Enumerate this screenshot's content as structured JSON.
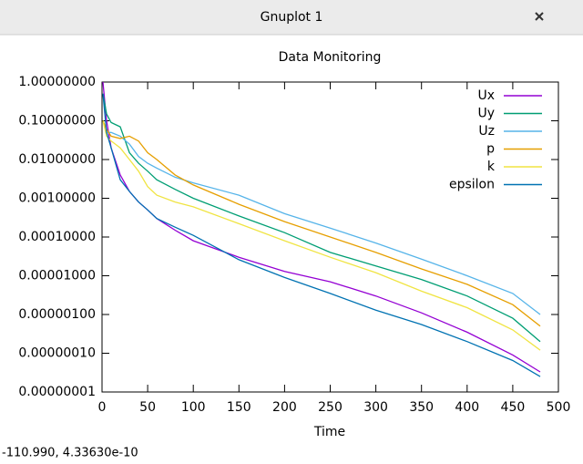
{
  "window": {
    "title": "Gnuplot 1",
    "status": "-110.990, 4.33630e-10"
  },
  "chart_data": {
    "type": "line",
    "title": "Data Monitoring",
    "x_label": "Time",
    "log_scale_y": true,
    "legend": "top-right",
    "x": [
      1,
      5,
      10,
      20,
      30,
      40,
      50,
      60,
      80,
      100,
      150,
      200,
      250,
      300,
      350,
      400,
      450,
      480
    ],
    "xlim": [
      0,
      500
    ],
    "xticks": [
      0,
      50,
      100,
      150,
      200,
      250,
      300,
      350,
      400,
      450,
      500
    ],
    "ylim": [
      1e-08,
      1
    ],
    "yticks": [
      {
        "value": 1e-08,
        "label": "0.00000001"
      },
      {
        "value": 1e-07,
        "label": "0.00000010"
      },
      {
        "value": 1e-06,
        "label": "0.00000100"
      },
      {
        "value": 1e-05,
        "label": "0.00001000"
      },
      {
        "value": 0.0001,
        "label": "0.00010000"
      },
      {
        "value": 0.001,
        "label": "0.00100000"
      },
      {
        "value": 0.01,
        "label": "0.01000000"
      },
      {
        "value": 0.1,
        "label": "0.10000000"
      },
      {
        "value": 1,
        "label": "1.00000000"
      }
    ],
    "series": [
      {
        "name": "Ux",
        "color": "#9400d3",
        "values": [
          1,
          0.1,
          0.02,
          0.004,
          0.0015,
          0.0008,
          0.0005,
          0.0003,
          0.00015,
          8e-05,
          3e-05,
          1.3e-05,
          7e-06,
          3e-06,
          1.1e-06,
          3.5e-07,
          9e-08,
          3.3e-08
        ]
      },
      {
        "name": "Uy",
        "color": "#009e73",
        "values": [
          0.5,
          0.15,
          0.09,
          0.07,
          0.015,
          0.008,
          0.005,
          0.003,
          0.0017,
          0.001,
          0.00035,
          0.00013,
          4e-05,
          1.8e-05,
          8e-06,
          3e-06,
          8e-07,
          2e-07
        ]
      },
      {
        "name": "Uz",
        "color": "#56b4e9",
        "values": [
          0.1,
          0.05,
          0.05,
          0.04,
          0.025,
          0.012,
          0.008,
          0.006,
          0.0035,
          0.0025,
          0.0012,
          0.0004,
          0.00017,
          7e-05,
          2.7e-05,
          1e-05,
          3.5e-06,
          1e-06
        ]
      },
      {
        "name": "p",
        "color": "#e69f00",
        "values": [
          0.1,
          0.06,
          0.04,
          0.035,
          0.04,
          0.03,
          0.015,
          0.01,
          0.004,
          0.0022,
          0.0007,
          0.00025,
          0.0001,
          4e-05,
          1.5e-05,
          6e-06,
          1.8e-06,
          5e-07
        ]
      },
      {
        "name": "k",
        "color": "#f0e442",
        "values": [
          0.1,
          0.04,
          0.03,
          0.02,
          0.01,
          0.005,
          0.002,
          0.0012,
          0.0008,
          0.0006,
          0.00022,
          8e-05,
          3e-05,
          1.2e-05,
          4e-06,
          1.5e-06,
          4e-07,
          1.2e-07
        ]
      },
      {
        "name": "epsilon",
        "color": "#0072b2",
        "values": [
          0.5,
          0.05,
          0.02,
          0.003,
          0.0015,
          0.0008,
          0.0005,
          0.0003,
          0.00018,
          0.00011,
          2.6e-05,
          9e-06,
          3.5e-06,
          1.3e-06,
          5.5e-07,
          2e-07,
          6.5e-08,
          2.5e-08
        ]
      }
    ]
  }
}
